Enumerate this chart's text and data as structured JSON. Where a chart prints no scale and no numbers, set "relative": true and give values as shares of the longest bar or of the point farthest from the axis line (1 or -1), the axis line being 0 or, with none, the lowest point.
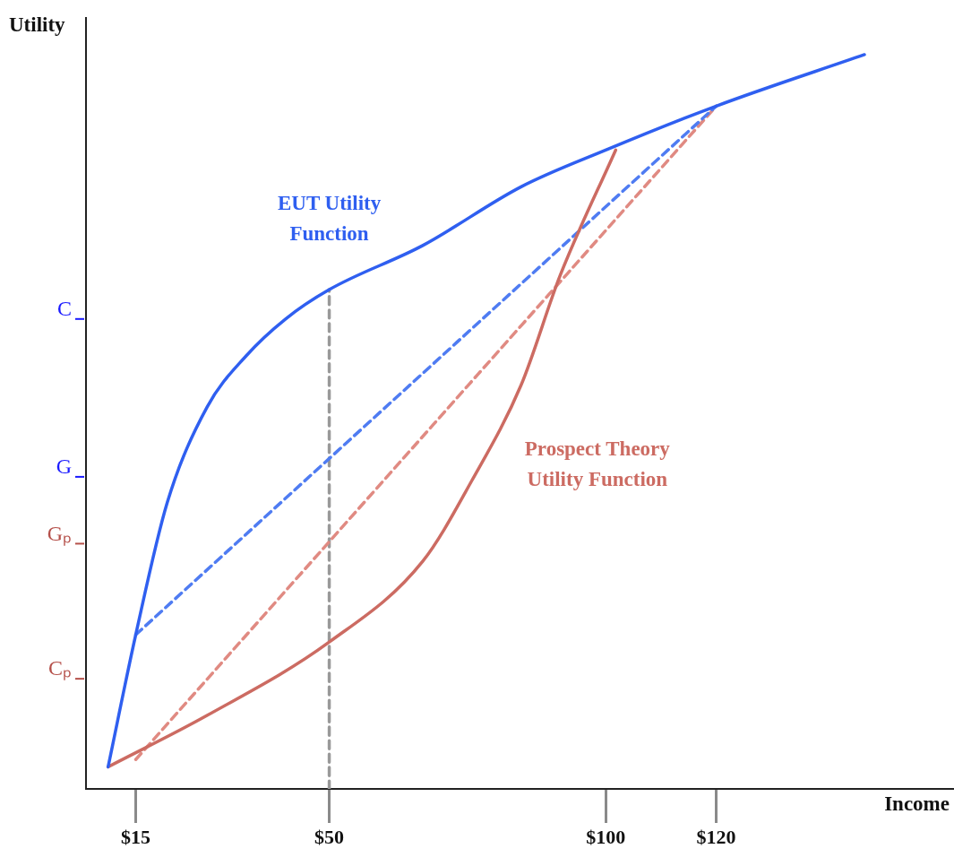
{
  "chart_data": {
    "type": "line",
    "xlabel": "Income",
    "ylabel": "Utility",
    "xlim": [
      6,
      163
    ],
    "xticks": [
      {
        "value": 15,
        "label": "$15"
      },
      {
        "value": 50,
        "label": "$50"
      },
      {
        "value": 100,
        "label": "$100"
      },
      {
        "value": 120,
        "label": "$120"
      }
    ],
    "relative": true,
    "ref_lines": [
      {
        "axis": "y",
        "value": 0.64,
        "label": "C",
        "color": "#1a1aff"
      },
      {
        "axis": "y",
        "value": 0.425,
        "label": "G",
        "color": "#1a1aff"
      },
      {
        "axis": "y",
        "value": 0.334,
        "label": "Gₚ",
        "color": "#b5504a"
      },
      {
        "axis": "y",
        "value": 0.15,
        "label": "Cₚ",
        "color": "#b5504a"
      }
    ],
    "grid": false,
    "legend": false,
    "marker": "none",
    "series": [
      {
        "name": "EUT Utility Function",
        "color": "#2f5ff0",
        "line_style": "solid",
        "x": [
          10,
          15,
          20.7,
          27.9,
          35,
          42.1,
          50,
          66.9,
          84.7,
          100,
          120,
          146.8
        ],
        "values": [
          0.03,
          0.21,
          0.39,
          0.52,
          0.59,
          0.64,
          0.68,
          0.74,
          0.82,
          0.87,
          0.93,
          1.0
        ]
      },
      {
        "name": "Prospect Theory Utility Function",
        "color": "#cc6b62",
        "line_style": "solid",
        "x": [
          10,
          27.9,
          50,
          66.9,
          75.8,
          84.7,
          91.8,
          101.8
        ],
        "values": [
          0.03,
          0.1,
          0.2,
          0.31,
          0.42,
          0.55,
          0.7,
          0.87
        ]
      },
      {
        "color": "#4f7cf2",
        "line_style": "dashed",
        "x": [
          15,
          120
        ],
        "values": [
          0.21,
          0.93
        ]
      },
      {
        "color": "#e08a82",
        "line_style": "dashed",
        "x": [
          15,
          120
        ],
        "values": [
          0.04,
          0.93
        ]
      },
      {
        "color": "#999999",
        "line_style": "dashed",
        "x": [
          50,
          50
        ],
        "values": [
          0,
          0.68
        ]
      }
    ]
  }
}
